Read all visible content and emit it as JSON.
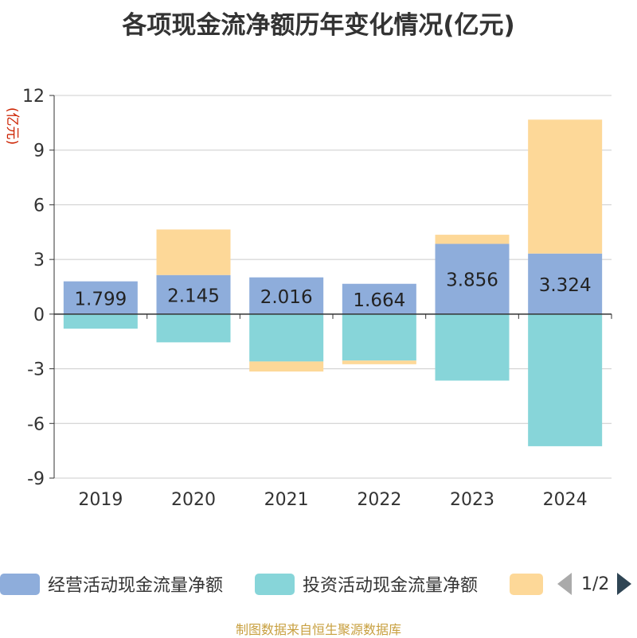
{
  "title": "各项现金流净额历年变化情况(亿元)",
  "unit_label": "(亿元)",
  "source": "制图数据来自恒生聚源数据库",
  "legend": {
    "items": [
      {
        "label": "经营活动现金流量净额",
        "color": "#8eaddb"
      },
      {
        "label": "投资活动现金流量净额",
        "color": "#87d5d9"
      },
      {
        "label": "",
        "color": "#fdd898"
      }
    ],
    "page": "1/2"
  },
  "chart_data": {
    "type": "bar",
    "stacked": true,
    "categories": [
      "2019",
      "2020",
      "2021",
      "2022",
      "2023",
      "2024"
    ],
    "ylim": [
      -9,
      12
    ],
    "yticks": [
      -9,
      -6,
      -3,
      0,
      3,
      6,
      9,
      12
    ],
    "grid": true,
    "series": [
      {
        "name": "经营活动现金流量净额",
        "color": "#8eaddb",
        "values": [
          1.799,
          2.145,
          2.016,
          1.664,
          3.856,
          3.324
        ],
        "labels": [
          "1.799",
          "2.145",
          "2.016",
          "1.664",
          "3.856",
          "3.324"
        ]
      },
      {
        "name": "投资活动现金流量净额",
        "color": "#87d5d9",
        "values": [
          -0.8,
          -1.55,
          -2.6,
          -2.55,
          -3.65,
          -7.25
        ]
      },
      {
        "name": "",
        "color": "#fdd898",
        "values": [
          0.0,
          2.5,
          -0.55,
          -0.2,
          0.5,
          7.35
        ]
      }
    ]
  }
}
